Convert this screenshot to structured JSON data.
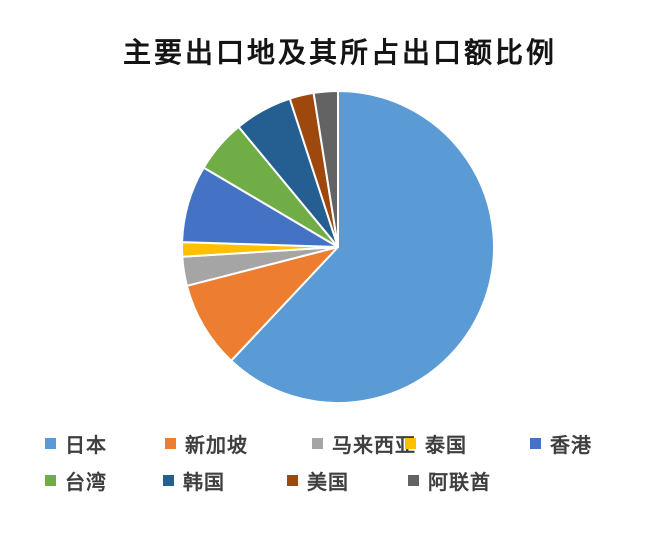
{
  "page": {
    "background": "#ffffff"
  },
  "chart_data": {
    "type": "pie",
    "title": "主要出口地及其所占出口额比例",
    "legend_position": "bottom",
    "start_angle_deg": 0,
    "direction": "clockwise",
    "categories": [
      "日本",
      "新加坡",
      "马来西亚",
      "泰国",
      "香港",
      "台湾",
      "韩国",
      "美国",
      "阿联酋"
    ],
    "values": [
      62,
      9,
      3,
      1.5,
      8,
      5.5,
      6,
      2.5,
      2.5
    ],
    "values_unit": "percent-estimated-from-slice-angles",
    "colors": [
      "#5B9BD5",
      "#ED7D31",
      "#A5A5A5",
      "#FFC000",
      "#4472C4",
      "#70AD47",
      "#255E91",
      "#9E480E",
      "#636363"
    ],
    "slice_border_color": "#ffffff"
  }
}
